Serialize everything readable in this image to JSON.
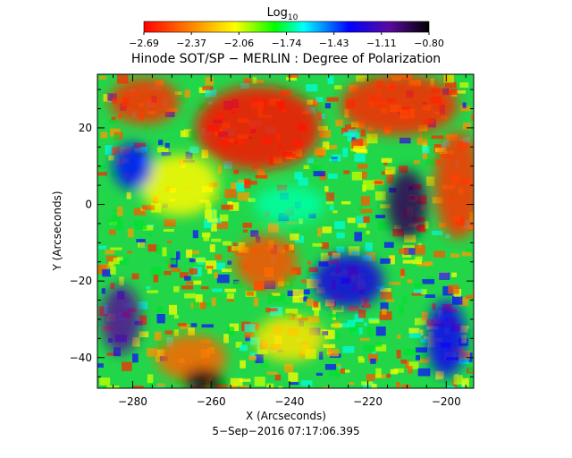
{
  "chart_data": {
    "type": "heatmap",
    "title": "Hinode SOT/SP − MERLIN : Degree of Polarization",
    "xlabel": "X (Arcseconds)",
    "ylabel": "Y (Arcseconds)",
    "timestamp": "5−Sep−2016 07:17:06.395",
    "colorbar": {
      "label_main": "Log",
      "label_sub": "10",
      "ticks": [
        "−2.69",
        "−2.37",
        "−2.06",
        "−1.74",
        "−1.43",
        "−1.11",
        "−0.80"
      ],
      "range": [
        -2.69,
        -0.8
      ],
      "colormap": "rainbow"
    },
    "xlim": [
      -289,
      -193
    ],
    "ylim": [
      -48,
      34
    ],
    "x_ticks": [
      {
        "value": -280,
        "label": "−280"
      },
      {
        "value": -260,
        "label": "−260"
      },
      {
        "value": -240,
        "label": "−240"
      },
      {
        "value": -220,
        "label": "−220"
      },
      {
        "value": -200,
        "label": "−200"
      }
    ],
    "y_ticks": [
      {
        "value": 20,
        "label": "20"
      },
      {
        "value": 0,
        "label": "0"
      },
      {
        "value": -20,
        "label": "−20"
      },
      {
        "value": -40,
        "label": "−40"
      }
    ],
    "regions": [
      {
        "x": -248,
        "y": 20,
        "rx": 16,
        "ry": 11,
        "value": -2.66
      },
      {
        "x": -277,
        "y": 27,
        "rx": 9,
        "ry": 6,
        "value": -2.58
      },
      {
        "x": -212,
        "y": 26,
        "rx": 15,
        "ry": 8,
        "value": -2.6
      },
      {
        "x": -197,
        "y": 5,
        "rx": 6,
        "ry": 14,
        "value": -2.57
      },
      {
        "x": -246,
        "y": -15,
        "rx": 8,
        "ry": 7,
        "value": -2.5
      },
      {
        "x": -265,
        "y": -40,
        "rx": 9,
        "ry": 6,
        "value": -2.45
      },
      {
        "x": -283,
        "y": -30,
        "rx": 5,
        "ry": 9,
        "value": -1.05
      },
      {
        "x": -210,
        "y": 0,
        "rx": 5,
        "ry": 9,
        "value": -0.95
      },
      {
        "x": -262,
        "y": -46,
        "rx": 5,
        "ry": 3,
        "value": -0.82
      },
      {
        "x": -240,
        "y": 0,
        "rx": 9,
        "ry": 5,
        "value": -1.7
      },
      {
        "x": -225,
        "y": -20,
        "rx": 9,
        "ry": 7,
        "value": -1.25
      },
      {
        "x": -200,
        "y": -35,
        "rx": 5,
        "ry": 10,
        "value": -1.3
      },
      {
        "x": -240,
        "y": -35,
        "rx": 9,
        "ry": 6,
        "value": -2.15
      },
      {
        "x": -268,
        "y": 5,
        "rx": 10,
        "ry": 8,
        "value": -2.1
      },
      {
        "x": -280,
        "y": 10,
        "rx": 5,
        "ry": 6,
        "value": -1.35
      }
    ]
  }
}
